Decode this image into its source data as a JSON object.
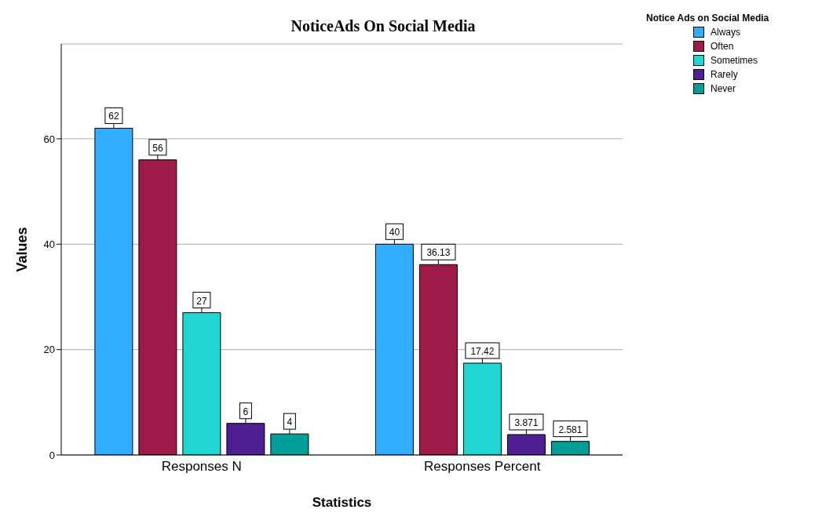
{
  "chart_data": {
    "type": "bar",
    "title": "NoticeAds On Social Media",
    "xlabel": "Statistics",
    "ylabel": "Values",
    "legend_title": "Notice Ads on Social Media",
    "categories": [
      "Responses N",
      "Responses Percent"
    ],
    "series": [
      {
        "name": "Always",
        "color": "#33adff",
        "values": [
          62,
          40
        ]
      },
      {
        "name": "Often",
        "color": "#9e1a4a",
        "values": [
          56,
          36.13
        ]
      },
      {
        "name": "Sometimes",
        "color": "#21d6d2",
        "values": [
          27,
          17.42
        ]
      },
      {
        "name": "Rarely",
        "color": "#4f1f91",
        "values": [
          6,
          3.871
        ]
      },
      {
        "name": "Never",
        "color": "#009e99",
        "values": [
          4,
          2.581
        ]
      }
    ],
    "ylim": [
      0,
      78
    ],
    "yticks": [
      0,
      20,
      40,
      60
    ],
    "grid": "y",
    "legend": "top right",
    "data_labels": true
  }
}
